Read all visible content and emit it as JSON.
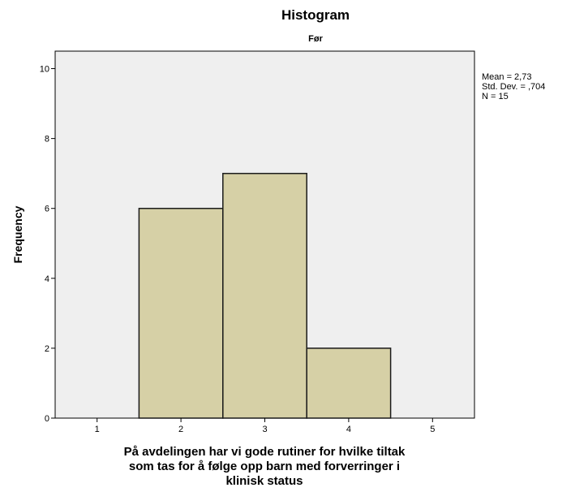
{
  "chart_data": {
    "type": "bar",
    "title": "Histogram",
    "subtitle": "Før",
    "xlabel_lines": [
      "På avdelingen har vi gode rutiner for hvilke tiltak",
      "som tas for å følge opp barn med forverringer i",
      "klinisk status"
    ],
    "ylabel": "Frequency",
    "x_ticks": [
      "1",
      "2",
      "3",
      "4",
      "5"
    ],
    "y_ticks": [
      "0",
      "2",
      "4",
      "6",
      "8",
      "10"
    ],
    "xlim": [
      0.5,
      5.5
    ],
    "ylim": [
      0,
      10.5
    ],
    "bins": [
      {
        "x": 2,
        "value": 6
      },
      {
        "x": 3,
        "value": 7
      },
      {
        "x": 4,
        "value": 2
      }
    ],
    "bin_width": 1,
    "stats_lines": [
      "Mean = 2,73",
      "Std. Dev. = ,704",
      "N = 15"
    ],
    "grid": false,
    "legend": "none",
    "colors": {
      "plot_background": "#efefef",
      "bar_fill": "#d6d0a6",
      "bar_stroke": "#1a1a1a"
    }
  }
}
